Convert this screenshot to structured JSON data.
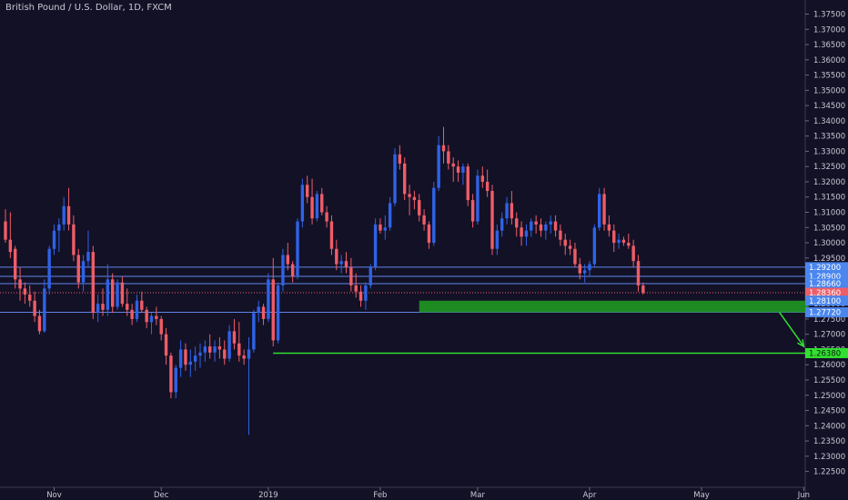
{
  "header": {
    "title": "British Pound / U.S. Dollar, 1D, FXCM"
  },
  "colors": {
    "background": "#131126",
    "up": "#2f62e6",
    "down": "#ef5d67",
    "hline": "#5f86e8",
    "zone": "#1e8a22",
    "target": "#31e031",
    "tag_blue": "#4a86ee",
    "tag_red": "#ef5d67",
    "tag_green": "#31e031",
    "axis_text": "#c8c8d2"
  },
  "chart_data": {
    "type": "candlestick",
    "title": "British Pound / U.S. Dollar, 1D, FXCM",
    "symbol": "GBP/USD",
    "timeframe": "1D",
    "source": "FXCM",
    "y_axis": {
      "range": [
        1.2225,
        1.3775
      ],
      "ticks": [
        "1.37500",
        "1.37000",
        "1.36500",
        "1.36000",
        "1.35500",
        "1.35000",
        "1.34500",
        "1.34000",
        "1.33500",
        "1.33000",
        "1.32500",
        "1.32000",
        "1.31500",
        "1.31000",
        "1.30500",
        "1.30000",
        "1.29500",
        "1.29000",
        "1.28500",
        "1.28000",
        "1.27500",
        "1.27000",
        "1.26500",
        "1.26000",
        "1.25500",
        "1.25000",
        "1.24500",
        "1.24000",
        "1.23500",
        "1.23000",
        "1.22500"
      ]
    },
    "x_axis": {
      "labels": [
        "Nov",
        "Dec",
        "2019",
        "Feb",
        "Mar",
        "Apr",
        "May",
        "Jun"
      ],
      "label_index": [
        10,
        32,
        54,
        77,
        97,
        120,
        143,
        164
      ]
    },
    "price_tags": [
      {
        "value": "1.29200",
        "price": 1.292,
        "color": "tag_blue"
      },
      {
        "value": "1.28900",
        "price": 1.289,
        "color": "tag_blue"
      },
      {
        "value": "1.28660",
        "price": 1.2866,
        "color": "tag_blue"
      },
      {
        "value": "1.28360",
        "price": 1.2836,
        "color": "tag_red"
      },
      {
        "value": "1.28100",
        "price": 1.281,
        "color": "tag_blue"
      },
      {
        "value": "1.27720",
        "price": 1.2772,
        "color": "tag_blue"
      },
      {
        "value": "1.26380",
        "price": 1.2638,
        "color": "tag_green"
      }
    ],
    "horizontal_lines": [
      1.292,
      1.289,
      1.2866,
      1.2772
    ],
    "current_price_line": 1.2836,
    "demand_zone": {
      "top": 1.281,
      "bottom": 1.2772,
      "from_index": 85,
      "to_index": 165
    },
    "target_line": {
      "price": 1.2638,
      "from_index": 55
    },
    "arrow": {
      "from": [
        159,
        1.2772
      ],
      "to": [
        164,
        1.266
      ]
    },
    "candles": [
      [
        1.307,
        1.311,
        1.3,
        1.301
      ],
      [
        1.301,
        1.31,
        1.295,
        1.297
      ],
      [
        1.298,
        1.299,
        1.285,
        1.288
      ],
      [
        1.288,
        1.292,
        1.281,
        1.285
      ],
      [
        1.285,
        1.287,
        1.28,
        1.283
      ],
      [
        1.283,
        1.286,
        1.279,
        1.281
      ],
      [
        1.281,
        1.284,
        1.274,
        1.276
      ],
      [
        1.276,
        1.278,
        1.27,
        1.271
      ],
      [
        1.271,
        1.288,
        1.2705,
        1.285
      ],
      [
        1.285,
        1.299,
        1.283,
        1.298
      ],
      [
        1.298,
        1.306,
        1.296,
        1.304
      ],
      [
        1.304,
        1.308,
        1.297,
        1.306
      ],
      [
        1.306,
        1.315,
        1.304,
        1.312
      ],
      [
        1.312,
        1.318,
        1.304,
        1.306
      ],
      [
        1.306,
        1.309,
        1.294,
        1.296
      ],
      [
        1.296,
        1.298,
        1.285,
        1.287
      ],
      [
        1.287,
        1.296,
        1.284,
        1.294
      ],
      [
        1.294,
        1.304,
        1.292,
        1.297
      ],
      [
        1.297,
        1.299,
        1.275,
        1.277
      ],
      [
        1.277,
        1.283,
        1.274,
        1.28
      ],
      [
        1.28,
        1.285,
        1.276,
        1.278
      ],
      [
        1.278,
        1.293,
        1.276,
        1.288
      ],
      [
        1.288,
        1.29,
        1.277,
        1.279
      ],
      [
        1.279,
        1.288,
        1.278,
        1.287
      ],
      [
        1.287,
        1.289,
        1.279,
        1.28
      ],
      [
        1.28,
        1.285,
        1.276,
        1.278
      ],
      [
        1.278,
        1.28,
        1.273,
        1.275
      ],
      [
        1.275,
        1.283,
        1.274,
        1.281
      ],
      [
        1.281,
        1.284,
        1.277,
        1.278
      ],
      [
        1.278,
        1.279,
        1.272,
        1.274
      ],
      [
        1.274,
        1.277,
        1.27,
        1.276
      ],
      [
        1.276,
        1.279,
        1.273,
        1.275
      ],
      [
        1.275,
        1.276,
        1.268,
        1.27
      ],
      [
        1.27,
        1.272,
        1.26,
        1.263
      ],
      [
        1.263,
        1.264,
        1.249,
        1.251
      ],
      [
        1.251,
        1.26,
        1.249,
        1.259
      ],
      [
        1.259,
        1.268,
        1.256,
        1.265
      ],
      [
        1.265,
        1.267,
        1.258,
        1.26
      ],
      [
        1.26,
        1.265,
        1.256,
        1.261
      ],
      [
        1.261,
        1.266,
        1.258,
        1.263
      ],
      [
        1.263,
        1.267,
        1.259,
        1.264
      ],
      [
        1.264,
        1.268,
        1.261,
        1.266
      ],
      [
        1.266,
        1.27,
        1.262,
        1.264
      ],
      [
        1.264,
        1.268,
        1.261,
        1.266
      ],
      [
        1.266,
        1.269,
        1.262,
        1.265
      ],
      [
        1.265,
        1.268,
        1.26,
        1.262
      ],
      [
        1.262,
        1.273,
        1.261,
        1.271
      ],
      [
        1.271,
        1.275,
        1.265,
        1.267
      ],
      [
        1.267,
        1.274,
        1.261,
        1.263
      ],
      [
        1.263,
        1.265,
        1.26,
        1.262
      ],
      [
        1.262,
        1.269,
        1.237,
        1.265
      ],
      [
        1.265,
        1.278,
        1.264,
        1.277
      ],
      [
        1.277,
        1.281,
        1.274,
        1.279
      ],
      [
        1.279,
        1.28,
        1.273,
        1.275
      ],
      [
        1.275,
        1.29,
        1.274,
        1.288
      ],
      [
        1.288,
        1.295,
        1.266,
        1.268
      ],
      [
        1.268,
        1.287,
        1.267,
        1.286
      ],
      [
        1.286,
        1.298,
        1.284,
        1.296
      ],
      [
        1.296,
        1.3,
        1.291,
        1.293
      ],
      [
        1.293,
        1.294,
        1.287,
        1.289
      ],
      [
        1.289,
        1.308,
        1.288,
        1.307
      ],
      [
        1.307,
        1.321,
        1.305,
        1.319
      ],
      [
        1.319,
        1.322,
        1.313,
        1.315
      ],
      [
        1.315,
        1.321,
        1.306,
        1.308
      ],
      [
        1.308,
        1.317,
        1.307,
        1.316
      ],
      [
        1.316,
        1.318,
        1.309,
        1.31
      ],
      [
        1.31,
        1.312,
        1.305,
        1.307
      ],
      [
        1.307,
        1.309,
        1.296,
        1.298
      ],
      [
        1.298,
        1.301,
        1.291,
        1.293
      ],
      [
        1.293,
        1.296,
        1.29,
        1.294
      ],
      [
        1.294,
        1.297,
        1.29,
        1.292
      ],
      [
        1.292,
        1.295,
        1.284,
        1.286
      ],
      [
        1.286,
        1.29,
        1.282,
        1.284
      ],
      [
        1.284,
        1.286,
        1.279,
        1.281
      ],
      [
        1.281,
        1.287,
        1.278,
        1.286
      ],
      [
        1.286,
        1.293,
        1.285,
        1.292
      ],
      [
        1.292,
        1.308,
        1.291,
        1.306
      ],
      [
        1.306,
        1.308,
        1.303,
        1.304
      ],
      [
        1.304,
        1.309,
        1.301,
        1.305
      ],
      [
        1.305,
        1.315,
        1.304,
        1.313
      ],
      [
        1.313,
        1.331,
        1.312,
        1.329
      ],
      [
        1.329,
        1.332,
        1.324,
        1.326
      ],
      [
        1.326,
        1.328,
        1.314,
        1.316
      ],
      [
        1.316,
        1.319,
        1.309,
        1.315
      ],
      [
        1.315,
        1.317,
        1.311,
        1.314
      ],
      [
        1.314,
        1.316,
        1.307,
        1.309
      ],
      [
        1.309,
        1.311,
        1.304,
        1.306
      ],
      [
        1.306,
        1.307,
        1.298,
        1.3
      ],
      [
        1.3,
        1.32,
        1.299,
        1.318
      ],
      [
        1.318,
        1.335,
        1.317,
        1.332
      ],
      [
        1.332,
        1.338,
        1.326,
        1.33
      ],
      [
        1.33,
        1.332,
        1.324,
        1.326
      ],
      [
        1.326,
        1.328,
        1.32,
        1.325
      ],
      [
        1.325,
        1.327,
        1.32,
        1.323
      ],
      [
        1.323,
        1.326,
        1.319,
        1.325
      ],
      [
        1.325,
        1.326,
        1.312,
        1.314
      ],
      [
        1.314,
        1.316,
        1.305,
        1.307
      ],
      [
        1.307,
        1.324,
        1.306,
        1.322
      ],
      [
        1.322,
        1.325,
        1.318,
        1.32
      ],
      [
        1.32,
        1.324,
        1.315,
        1.317
      ],
      [
        1.317,
        1.319,
        1.296,
        1.298
      ],
      [
        1.298,
        1.306,
        1.296,
        1.304
      ],
      [
        1.304,
        1.31,
        1.302,
        1.308
      ],
      [
        1.308,
        1.315,
        1.306,
        1.313
      ],
      [
        1.313,
        1.317,
        1.306,
        1.308
      ],
      [
        1.308,
        1.31,
        1.302,
        1.305
      ],
      [
        1.305,
        1.307,
        1.299,
        1.302
      ],
      [
        1.302,
        1.306,
        1.299,
        1.304
      ],
      [
        1.304,
        1.308,
        1.302,
        1.307
      ],
      [
        1.307,
        1.309,
        1.303,
        1.306
      ],
      [
        1.306,
        1.308,
        1.302,
        1.304
      ],
      [
        1.304,
        1.307,
        1.301,
        1.306
      ],
      [
        1.306,
        1.309,
        1.303,
        1.307
      ],
      [
        1.307,
        1.309,
        1.302,
        1.304
      ],
      [
        1.304,
        1.306,
        1.299,
        1.301
      ],
      [
        1.301,
        1.303,
        1.296,
        1.299
      ],
      [
        1.299,
        1.301,
        1.296,
        1.298
      ],
      [
        1.298,
        1.3,
        1.292,
        1.293
      ],
      [
        1.293,
        1.295,
        1.288,
        1.29
      ],
      [
        1.29,
        1.293,
        1.287,
        1.291
      ],
      [
        1.291,
        1.294,
        1.289,
        1.293
      ],
      [
        1.293,
        1.306,
        1.292,
        1.305
      ],
      [
        1.305,
        1.318,
        1.304,
        1.316
      ],
      [
        1.316,
        1.318,
        1.304,
        1.306
      ],
      [
        1.306,
        1.309,
        1.302,
        1.304
      ],
      [
        1.304,
        1.306,
        1.297,
        1.3
      ],
      [
        1.3,
        1.303,
        1.298,
        1.301
      ],
      [
        1.301,
        1.302,
        1.299,
        1.3
      ],
      [
        1.3,
        1.303,
        1.298,
        1.299
      ],
      [
        1.299,
        1.301,
        1.292,
        1.294
      ],
      [
        1.294,
        1.296,
        1.284,
        1.286
      ],
      [
        1.286,
        1.287,
        1.283,
        1.2836
      ]
    ]
  }
}
